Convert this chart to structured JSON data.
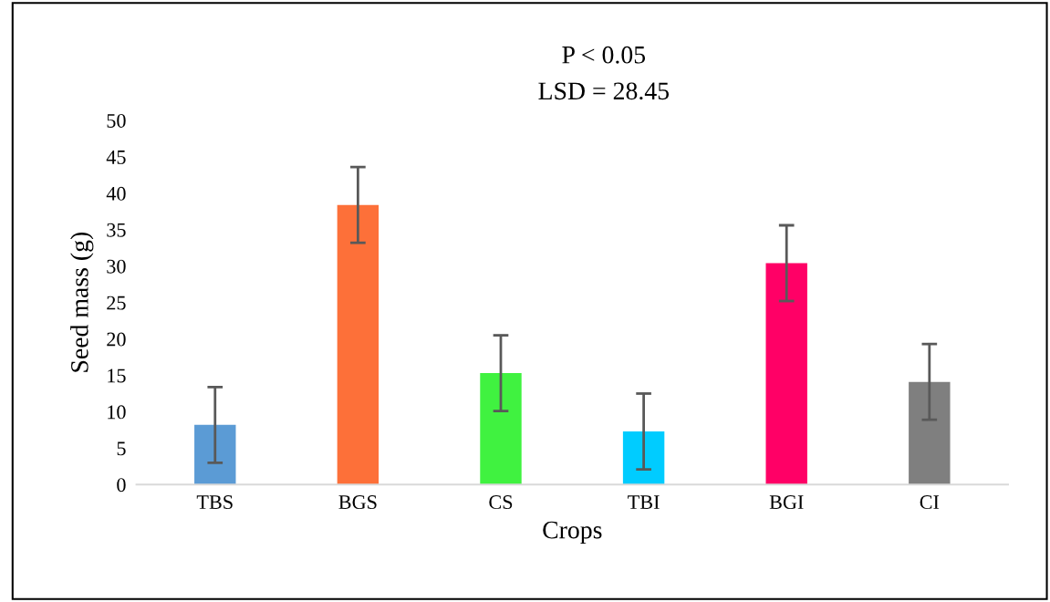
{
  "chart_data": {
    "type": "bar",
    "title": "P < 0.05",
    "subtitle": "LSD = 28.45",
    "xlabel": "Crops",
    "ylabel": "Seed mass (g)",
    "categories": [
      "TBS",
      "BGS",
      "CS",
      "TBI",
      "BGI",
      "CI"
    ],
    "values": [
      8.2,
      38.4,
      15.3,
      7.3,
      30.4,
      14.1
    ],
    "errors": [
      5.2,
      5.2,
      5.2,
      5.2,
      5.2,
      5.2
    ],
    "colors": [
      "#5b9bd5",
      "#fd7039",
      "#40f240",
      "#00ccff",
      "#ff0066",
      "#7f7f7f"
    ],
    "ylim": [
      0,
      50
    ],
    "yticks": [
      0,
      5,
      10,
      15,
      20,
      25,
      30,
      35,
      40,
      45,
      50
    ],
    "grid": false,
    "legend": false
  }
}
